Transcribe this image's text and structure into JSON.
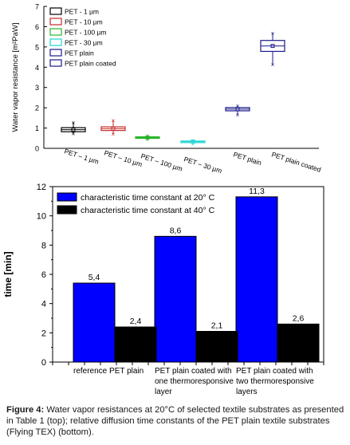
{
  "chart_data": [
    {
      "type": "box",
      "ylabel": "Water vapor resistance [m²PaW]",
      "ylim": [
        0,
        7
      ],
      "yticks": [
        0,
        1,
        2,
        3,
        4,
        5,
        6,
        7
      ],
      "grid": false,
      "legend_position": "top-left",
      "categories": [
        "PET - 1 µm",
        "PET - 10 µm",
        "PET - 100 µm",
        "PET - 30 µm",
        "PET plain",
        "PET plain coated"
      ],
      "series": [
        {
          "name": "PET - 1 µm",
          "color": "#000000",
          "q1": 0.82,
          "median": 0.92,
          "q3": 1.02,
          "min": 0.72,
          "max": 1.27,
          "mean": 0.92
        },
        {
          "name": "PET - 10 µm",
          "color": "#c62828",
          "q1": 0.88,
          "median": 0.97,
          "q3": 1.06,
          "min": 0.7,
          "max": 1.38,
          "mean": 0.97
        },
        {
          "name": "PET - 100 µm",
          "color": "#2bb52b",
          "q1": 0.5,
          "median": 0.53,
          "q3": 0.57,
          "min": 0.44,
          "max": 0.62,
          "mean": 0.53
        },
        {
          "name": "PET - 30 µm",
          "color": "#22d3d3",
          "q1": 0.3,
          "median": 0.33,
          "q3": 0.36,
          "min": 0.22,
          "max": 0.4,
          "mean": 0.33
        },
        {
          "name": "PET plain",
          "color": "#1a1a8c",
          "q1": 1.85,
          "median": 1.93,
          "q3": 2.01,
          "min": 1.65,
          "max": 2.1,
          "mean": 1.93
        },
        {
          "name": "PET plain coated",
          "color": "#1a1a8c",
          "q1": 4.78,
          "median": 5.05,
          "q3": 5.32,
          "min": 4.12,
          "max": 5.68,
          "mean": 5.05
        }
      ],
      "xlabels": [
        "PET – 1 µm",
        "PET – 10 µm",
        "PET – 100 µm",
        "PET – 30 µm",
        "PET plain",
        "PET plain coated"
      ]
    },
    {
      "type": "bar",
      "ylabel": "time [min]",
      "ylim": [
        0,
        12
      ],
      "yticks": [
        0,
        2,
        4,
        6,
        8,
        10,
        12
      ],
      "grid": false,
      "legend_position": "top-left",
      "categories": [
        [
          "reference PET plain"
        ],
        [
          "PET plain coated with",
          "one thermoresponsive",
          "layer"
        ],
        [
          "PET plain coated with",
          "two thermoresponsive",
          "layers"
        ]
      ],
      "series": [
        {
          "name": "characteristic time constant at 20° C",
          "color": "#0000ff",
          "values": [
            5.4,
            8.6,
            11.3
          ],
          "labels": [
            "5,4",
            "8,6",
            "11,3"
          ]
        },
        {
          "name": "characteristic time constant at 40° C",
          "color": "#000000",
          "values": [
            2.4,
            2.1,
            2.6
          ],
          "labels": [
            "2,4",
            "2,1",
            "2,6"
          ]
        }
      ]
    }
  ],
  "caption": {
    "label": "Figure 4:",
    "text": " Water vapor resistances at 20°C of selected textile substrates as presented in Table 1 (top); relative diffusion time constants of the PET plain textile substrates (Flying TEX) (bottom)."
  }
}
